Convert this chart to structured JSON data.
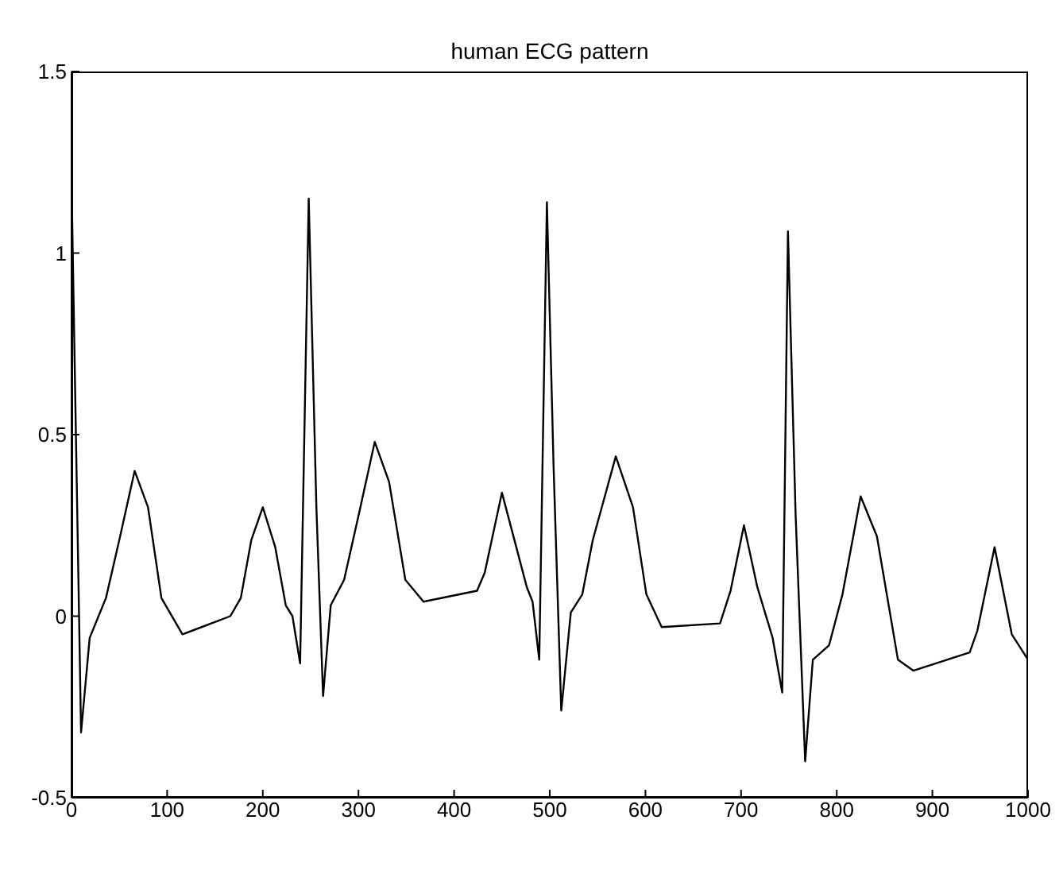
{
  "chart_data": {
    "type": "line",
    "title": "human ECG pattern",
    "color": "#000000",
    "x": [
      0,
      10,
      19,
      36,
      50,
      66,
      80,
      94,
      116,
      166,
      177,
      188,
      200,
      213,
      224,
      231,
      239,
      248,
      256,
      263,
      271,
      285,
      302,
      317,
      332,
      349,
      368,
      424,
      432,
      450,
      465,
      476,
      482,
      489,
      497,
      504,
      512,
      522,
      534,
      545,
      569,
      587,
      601,
      617,
      678,
      689,
      703,
      717,
      733,
      743,
      749,
      757,
      767,
      775,
      792,
      806,
      825,
      842,
      864,
      880,
      939,
      947,
      965,
      983,
      1000
    ],
    "values": [
      1.2,
      -0.32,
      -0.06,
      0.05,
      0.21,
      0.4,
      0.3,
      0.05,
      -0.05,
      0.0,
      0.05,
      0.21,
      0.3,
      0.19,
      0.03,
      0.0,
      -0.13,
      1.15,
      0.3,
      -0.22,
      0.03,
      0.1,
      0.3,
      0.48,
      0.37,
      0.1,
      0.04,
      0.07,
      0.12,
      0.34,
      0.19,
      0.08,
      0.04,
      -0.12,
      1.14,
      0.41,
      -0.26,
      0.01,
      0.06,
      0.21,
      0.44,
      0.3,
      0.06,
      -0.03,
      -0.02,
      0.07,
      0.25,
      0.08,
      -0.06,
      -0.21,
      1.06,
      0.28,
      -0.4,
      -0.12,
      -0.08,
      0.06,
      0.33,
      0.22,
      -0.12,
      -0.15,
      -0.1,
      -0.04,
      0.19,
      -0.05,
      -0.12
    ],
    "xlim": [
      0,
      1000
    ],
    "xticks": [
      0,
      100,
      200,
      300,
      400,
      500,
      600,
      700,
      800,
      900,
      1000
    ],
    "ylim": [
      -0.5,
      1.5
    ],
    "yticks": [
      -0.5,
      0,
      0.5,
      1,
      1.5
    ],
    "grid": false,
    "marker": "none",
    "line_style": "solid"
  }
}
